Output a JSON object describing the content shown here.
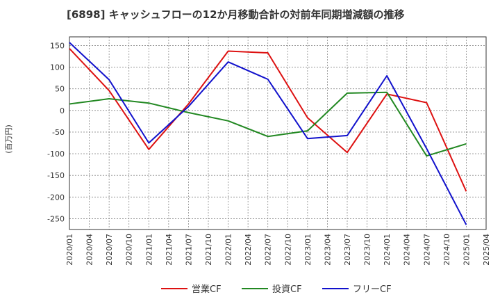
{
  "chart_data": {
    "type": "line",
    "title": "[6898]  キャッシュフローの12か月移動合計の対前年同期増減額の推移",
    "ylabel": "(百万円)",
    "xlabel": "",
    "ylim": [
      -275,
      170
    ],
    "yticks": [
      150,
      100,
      50,
      0,
      -50,
      -100,
      -150,
      -200,
      -250
    ],
    "x_tick_labels": [
      "2020/01",
      "2020/04",
      "2020/07",
      "2020/10",
      "2021/01",
      "2021/04",
      "2021/07",
      "2021/10",
      "2022/01",
      "2022/04",
      "2022/07",
      "2022/10",
      "2023/01",
      "2023/04",
      "2023/07",
      "2023/10",
      "2024/01",
      "2024/04",
      "2024/07",
      "2024/10",
      "2025/01",
      "2025/04"
    ],
    "x_points": [
      "2020/01",
      "2020/07",
      "2021/01",
      "2021/07",
      "2022/01",
      "2022/07",
      "2023/01",
      "2023/07",
      "2024/01",
      "2024/07",
      "2025/01"
    ],
    "series": [
      {
        "name": "営業CF",
        "color": "#dd1111",
        "values": [
          143,
          46,
          -90,
          15,
          137,
          133,
          -17,
          -97,
          38,
          18,
          -187
        ]
      },
      {
        "name": "投資CF",
        "color": "#228822",
        "values": [
          15,
          27,
          17,
          -5,
          -24,
          -60,
          -47,
          40,
          42,
          -105,
          -77
        ]
      },
      {
        "name": "フリーCF",
        "color": "#1111cc",
        "values": [
          157,
          71,
          -75,
          9,
          112,
          72,
          -65,
          -58,
          80,
          -88,
          -264
        ]
      }
    ],
    "grid": true,
    "legend": "bottom-center"
  }
}
